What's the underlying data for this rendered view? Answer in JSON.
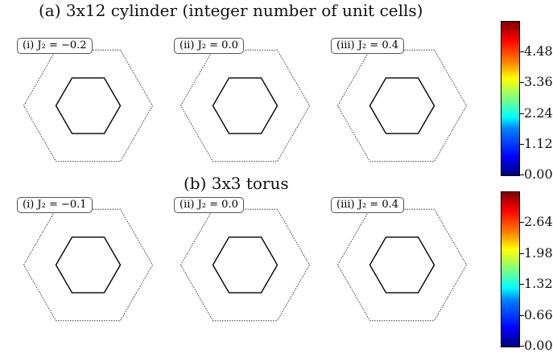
{
  "chart_data": [
    {
      "type": "heatmap",
      "title": "(a) 3x12 cylinder (integer number of unit cells)",
      "panels": [
        {
          "label": "(i) J₂ = −0.2",
          "J2": -0.2
        },
        {
          "label": "(ii) J₂ = 0.0",
          "J2": 0.0
        },
        {
          "label": "(iii) J₂ = 0.4",
          "J2": 0.4
        }
      ],
      "colorbar": {
        "ticks": [
          "0.00",
          "1.12",
          "2.24",
          "3.36",
          "4.48"
        ],
        "range": [
          0,
          5.6
        ]
      },
      "colormap": "jet"
    },
    {
      "type": "heatmap",
      "title": "(b) 3x3 torus",
      "panels": [
        {
          "label": "(i) J₂ = −0.1",
          "J2": -0.1
        },
        {
          "label": "(ii) J₂ = 0.0",
          "J2": 0.0
        },
        {
          "label": "(iii) J₂ = 0.4",
          "J2": 0.4
        }
      ],
      "colorbar": {
        "ticks": [
          "0.00",
          "0.66",
          "1.32",
          "1.98",
          "2.64"
        ],
        "range": [
          0,
          3.3
        ]
      },
      "colormap": "jet"
    }
  ]
}
